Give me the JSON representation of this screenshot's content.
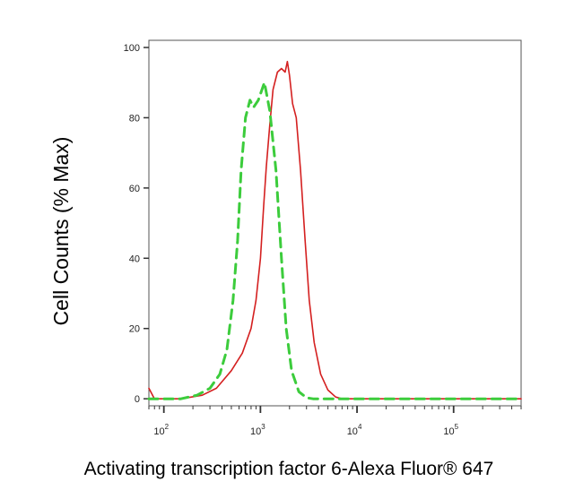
{
  "chart_data": {
    "type": "line",
    "title": "",
    "xlabel": "Activating transcription factor 6-Alexa Fluor® 647",
    "ylabel": "Cell Counts (% Max)",
    "x_scale": "log",
    "xlim": [
      70,
      500000
    ],
    "ylim": [
      -2,
      100
    ],
    "x_ticks": [
      {
        "value": 100,
        "base": "10",
        "exp": "2"
      },
      {
        "value": 1000,
        "base": "10",
        "exp": "3"
      },
      {
        "value": 10000,
        "base": "10",
        "exp": "4"
      },
      {
        "value": 100000,
        "base": "10",
        "exp": "5"
      }
    ],
    "y_ticks": [
      0,
      20,
      40,
      60,
      80,
      100
    ],
    "grid": false,
    "legend": "none",
    "series": [
      {
        "color": "#d42020",
        "style": "solid",
        "points": [
          [
            70,
            3
          ],
          [
            80,
            0
          ],
          [
            150,
            0
          ],
          [
            250,
            1
          ],
          [
            350,
            3
          ],
          [
            500,
            8
          ],
          [
            650,
            13
          ],
          [
            800,
            20
          ],
          [
            900,
            28
          ],
          [
            1000,
            40
          ],
          [
            1080,
            55
          ],
          [
            1150,
            66
          ],
          [
            1250,
            78
          ],
          [
            1350,
            88
          ],
          [
            1500,
            93
          ],
          [
            1650,
            94
          ],
          [
            1800,
            93
          ],
          [
            1900,
            96
          ],
          [
            2000,
            92
          ],
          [
            2150,
            84
          ],
          [
            2350,
            80
          ],
          [
            2600,
            65
          ],
          [
            2900,
            45
          ],
          [
            3200,
            28
          ],
          [
            3600,
            16
          ],
          [
            4200,
            7
          ],
          [
            5000,
            2.5
          ],
          [
            6000,
            0.5
          ],
          [
            7000,
            0
          ],
          [
            500000,
            0
          ]
        ]
      },
      {
        "color": "#3ccc3c",
        "style": "dashed",
        "points": [
          [
            70,
            0
          ],
          [
            150,
            0
          ],
          [
            220,
            1
          ],
          [
            300,
            3
          ],
          [
            380,
            7
          ],
          [
            450,
            14
          ],
          [
            520,
            28
          ],
          [
            580,
            45
          ],
          [
            630,
            65
          ],
          [
            700,
            80
          ],
          [
            780,
            85
          ],
          [
            850,
            83
          ],
          [
            950,
            85
          ],
          [
            1100,
            90
          ],
          [
            1250,
            82
          ],
          [
            1450,
            65
          ],
          [
            1650,
            40
          ],
          [
            1850,
            20
          ],
          [
            2100,
            8
          ],
          [
            2500,
            2
          ],
          [
            3000,
            0.3
          ],
          [
            3500,
            0
          ],
          [
            500000,
            0
          ]
        ]
      }
    ]
  }
}
